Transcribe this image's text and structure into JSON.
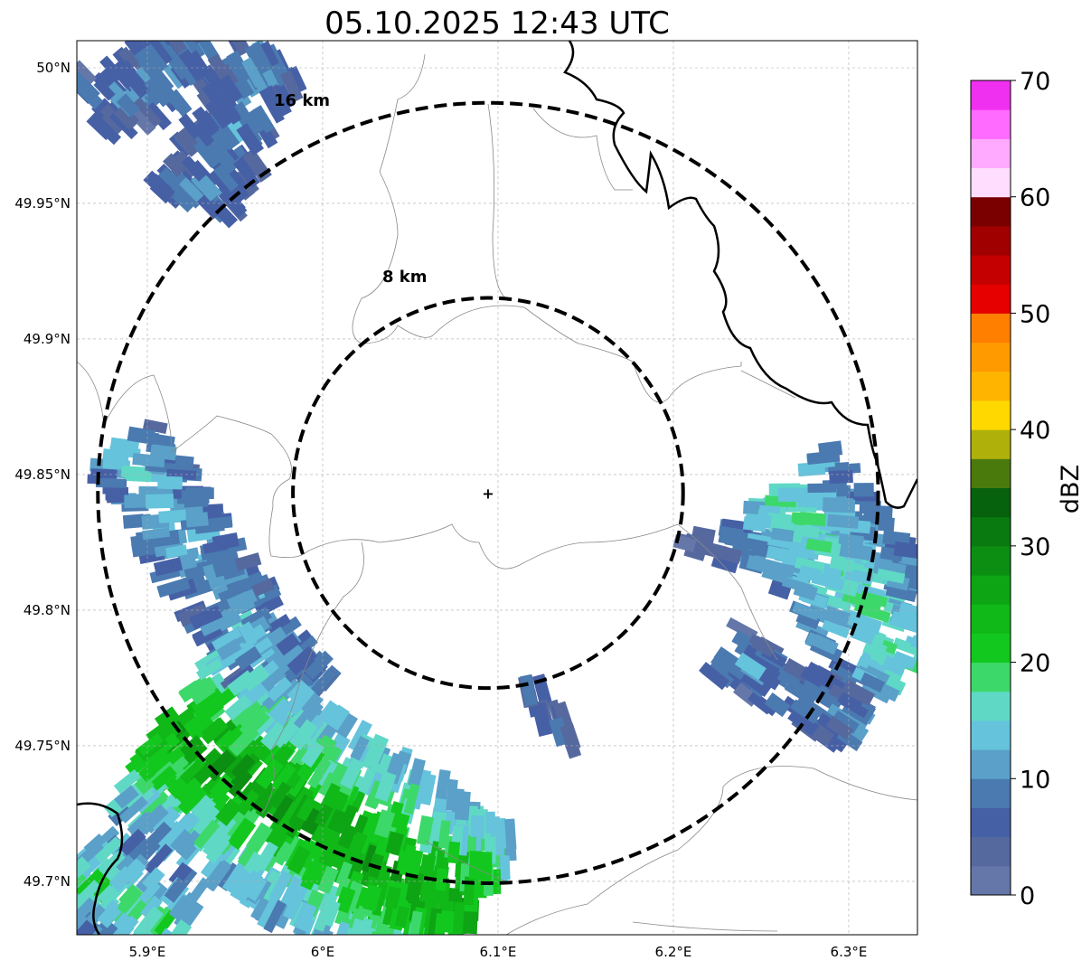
{
  "title": "05.10.2025 12:43 UTC",
  "chart_data": {
    "type": "heatmap",
    "title": "05.10.2025 12:43 UTC",
    "lon_range": [
      5.8598,
      6.3392
    ],
    "lat_range": [
      49.6803,
      50.01
    ],
    "x_ticks": [
      {
        "value": 5.9,
        "label": "5.9°E"
      },
      {
        "value": 6.0,
        "label": "6°E"
      },
      {
        "value": 6.1,
        "label": "6.1°E"
      },
      {
        "value": 6.2,
        "label": "6.2°E"
      },
      {
        "value": 6.3,
        "label": "6.3°E"
      }
    ],
    "y_ticks": [
      {
        "value": 50.0,
        "label": "50°N"
      },
      {
        "value": 49.95,
        "label": "49.95°N"
      },
      {
        "value": 49.9,
        "label": "49.9°N"
      },
      {
        "value": 49.85,
        "label": "49.85°N"
      },
      {
        "value": 49.8,
        "label": "49.8°N"
      },
      {
        "value": 49.75,
        "label": "49.75°N"
      },
      {
        "value": 49.7,
        "label": "49.7°N"
      }
    ],
    "grid": true,
    "radar_site": {
      "lon": 6.0943,
      "lat": 49.8432
    },
    "range_rings": [
      {
        "km": 8,
        "label": "8 km"
      },
      {
        "km": 16,
        "label": "16 km"
      }
    ],
    "colorbar": {
      "label": "dBZ",
      "min": 0,
      "max": 70,
      "step": 2.5,
      "ticks": [
        0,
        10,
        20,
        30,
        40,
        50,
        60,
        70
      ],
      "colors": [
        "#6577a9",
        "#56699f",
        "#4660a6",
        "#4a7ab0",
        "#5aa0c8",
        "#65c3dc",
        "#60d8c6",
        "#3dd86a",
        "#12c81e",
        "#10b818",
        "#0ea514",
        "#0b8e12",
        "#097a10",
        "#06620c",
        "#4a7a0c",
        "#b0b00a",
        "#ffd800",
        "#ffb400",
        "#ff9a00",
        "#ff7f00",
        "#e60000",
        "#c40000",
        "#a00000",
        "#7a0000",
        "#ffddff",
        "#ffaaff",
        "#ff6aff",
        "#f030f0"
      ]
    },
    "echo_clusters": [
      {
        "start": [
          5.9448,
          50.0083
        ],
        "end": [
          5.8675,
          49.985
        ],
        "width_deg": 0.027,
        "mean_dbz": 8,
        "max_dbz": 20
      },
      {
        "start": [
          5.9706,
          50.005
        ],
        "end": [
          5.9242,
          49.9483
        ],
        "width_deg": 0.03,
        "mean_dbz": 8,
        "max_dbz": 20
      },
      {
        "start": [
          5.8856,
          49.86
        ],
        "end": [
          5.9861,
          49.765
        ],
        "width_deg": 0.03,
        "mean_dbz": 11,
        "max_dbz": 22
      },
      {
        "start": [
          5.9088,
          49.7583
        ],
        "end": [
          6.084,
          49.685
        ],
        "width_deg": 0.075,
        "mean_dbz": 21,
        "max_dbz": 39
      },
      {
        "start": [
          5.8598,
          49.705
        ],
        "end": [
          5.919,
          49.6783
        ],
        "width_deg": 0.04,
        "mean_dbz": 15,
        "max_dbz": 26
      },
      {
        "start": [
          6.2593,
          49.845
        ],
        "end": [
          6.3392,
          49.7783
        ],
        "width_deg": 0.05,
        "mean_dbz": 14,
        "max_dbz": 26
      },
      {
        "start": [
          6.2284,
          49.785
        ],
        "end": [
          6.3057,
          49.7583
        ],
        "width_deg": 0.022,
        "mean_dbz": 8,
        "max_dbz": 19
      },
      {
        "start": [
          6.2077,
          49.8267
        ],
        "end": [
          6.2309,
          49.8183
        ],
        "width_deg": 0.008,
        "mean_dbz": 5,
        "max_dbz": 9
      },
      {
        "start": [
          6.115,
          49.7733
        ],
        "end": [
          6.1433,
          49.75
        ],
        "width_deg": 0.008,
        "mean_dbz": 6,
        "max_dbz": 10
      }
    ]
  }
}
